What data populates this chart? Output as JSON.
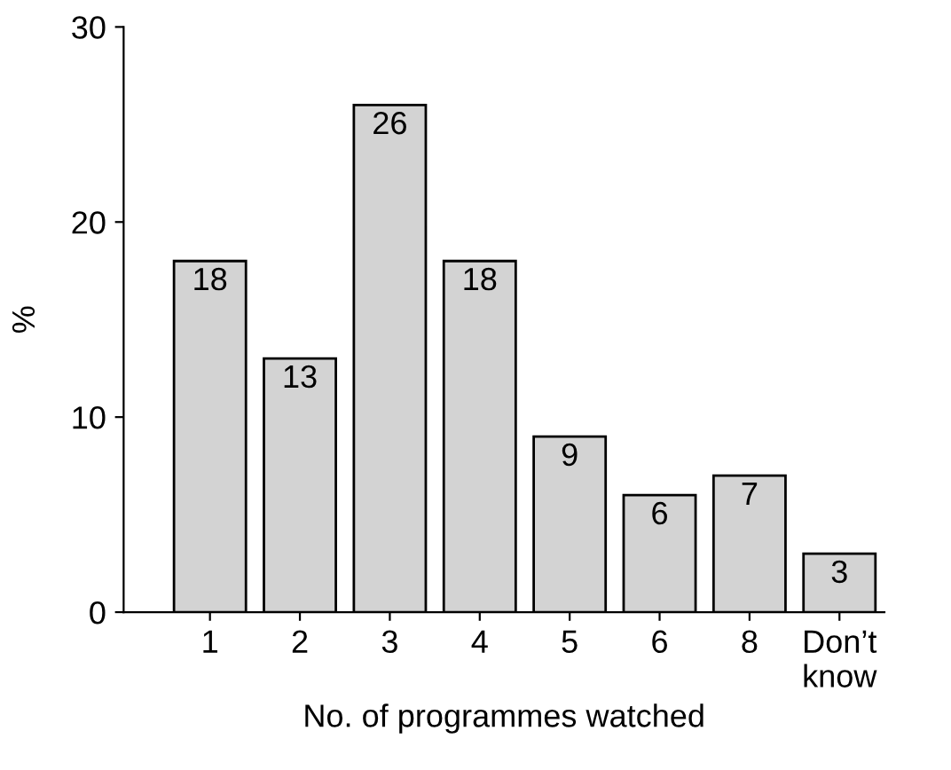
{
  "chart_data": {
    "type": "bar",
    "xlabel": "No. of programmes watched",
    "ylabel": "%",
    "categories": [
      "1",
      "2",
      "3",
      "4",
      "5",
      "6",
      "8",
      "Don’t\nknow"
    ],
    "values": [
      18,
      13,
      26,
      18,
      9,
      6,
      7,
      3
    ],
    "color": "#d3d3d3",
    "ylim": [
      0,
      30
    ],
    "yticks": [
      0,
      10,
      20,
      30
    ],
    "grid": false,
    "data_labels": true
  }
}
